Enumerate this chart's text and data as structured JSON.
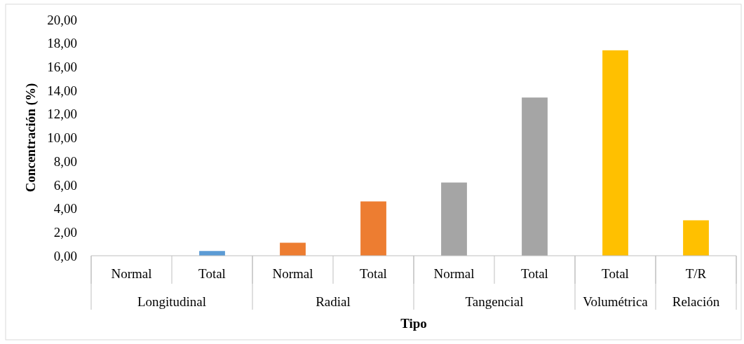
{
  "chart_data": {
    "type": "bar",
    "xlabel": "Tipo",
    "ylabel": "Concentración (%)",
    "categories": [
      "Normal",
      "Total",
      "Normal",
      "Total",
      "Normal",
      "Total",
      "Total",
      "T/R"
    ],
    "values": [
      0,
      0.4,
      1.1,
      4.6,
      6.2,
      13.4,
      17.4,
      3.0
    ],
    "colors": [
      "#5b9bd5",
      "#5b9bd5",
      "#ed7d31",
      "#ed7d31",
      "#a5a5a5",
      "#a5a5a5",
      "#ffc000",
      "#ffc000"
    ],
    "annotations": [
      "Longitudinal",
      "Radial",
      "Tangencial",
      "Volumétrica",
      "Relación"
    ],
    "ylim": [
      0,
      20
    ],
    "yticks": [
      {
        "value": 0,
        "label": "0,00"
      },
      {
        "value": 2,
        "label": "2,00"
      },
      {
        "value": 4,
        "label": "4,00"
      },
      {
        "value": 6,
        "label": "6,00"
      },
      {
        "value": 8,
        "label": "8,00"
      },
      {
        "value": 10,
        "label": "10,00"
      },
      {
        "value": 12,
        "label": "12,00"
      },
      {
        "value": 14,
        "label": "14,00"
      },
      {
        "value": 16,
        "label": "16,00"
      },
      {
        "value": 18,
        "label": "18,00"
      },
      {
        "value": 20,
        "label": "20,00"
      }
    ],
    "grid": false
  }
}
